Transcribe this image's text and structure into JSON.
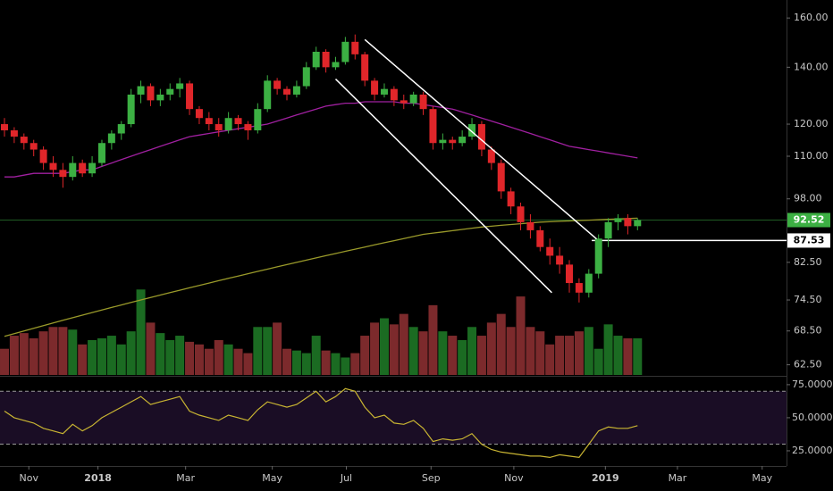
{
  "chart_data": {
    "type": "candlestick",
    "xlim": [
      -0.46,
      80.3
    ],
    "xticks": [
      {
        "value": 2.5,
        "label": "Nov"
      },
      {
        "value": 9.6,
        "label": "2018"
      },
      {
        "value": 18.6,
        "label": "Mar"
      },
      {
        "value": 27.5,
        "label": "May"
      },
      {
        "value": 35.1,
        "label": "Jul"
      },
      {
        "value": 43.8,
        "label": "Sep"
      },
      {
        "value": 52.3,
        "label": "Nov"
      },
      {
        "value": 61.7,
        "label": "2019"
      },
      {
        "value": 69.1,
        "label": "Mar"
      },
      {
        "value": 77.8,
        "label": "May"
      }
    ],
    "ylim": [
      60.8,
      168
    ],
    "log_scale": true,
    "yticks": [
      {
        "value": 160,
        "label": "160.00"
      },
      {
        "value": 140,
        "label": "140.00"
      },
      {
        "value": 120,
        "label": "120.00"
      },
      {
        "value": 110,
        "label": "110.00"
      },
      {
        "value": 98,
        "label": "98.00"
      },
      {
        "value": 82.5,
        "label": "82.50"
      },
      {
        "value": 74.5,
        "label": "74.50"
      },
      {
        "value": 68.5,
        "label": "68.50"
      },
      {
        "value": 62.5,
        "label": "62.50"
      }
    ],
    "up_color": "#3cb043",
    "down_color": "#e0262a",
    "candles": [
      [
        120,
        122,
        116,
        118
      ],
      [
        118,
        119,
        114,
        116
      ],
      [
        116,
        117,
        112,
        114
      ],
      [
        114,
        115,
        110,
        112
      ],
      [
        112,
        113,
        106,
        108
      ],
      [
        108,
        110,
        104,
        106
      ],
      [
        106,
        108,
        101,
        104
      ],
      [
        104,
        110,
        103,
        108
      ],
      [
        108,
        109,
        104,
        105
      ],
      [
        105,
        110,
        104,
        108
      ],
      [
        108,
        115,
        107,
        114
      ],
      [
        114,
        118,
        112,
        117
      ],
      [
        117,
        121,
        115,
        120
      ],
      [
        120,
        132,
        119,
        130
      ],
      [
        130,
        135,
        127,
        133
      ],
      [
        133,
        134,
        126,
        128
      ],
      [
        128,
        132,
        126,
        130
      ],
      [
        130,
        134,
        128,
        132
      ],
      [
        132,
        136,
        129,
        134
      ],
      [
        134,
        135,
        123,
        125
      ],
      [
        125,
        126,
        120,
        122
      ],
      [
        122,
        124,
        118,
        120
      ],
      [
        120,
        122,
        116,
        118
      ],
      [
        118,
        124,
        117,
        122
      ],
      [
        122,
        123,
        118,
        120
      ],
      [
        120,
        121,
        115,
        118
      ],
      [
        118,
        127,
        117,
        125
      ],
      [
        125,
        137,
        124,
        135
      ],
      [
        135,
        136,
        130,
        132
      ],
      [
        132,
        133,
        128,
        130
      ],
      [
        130,
        135,
        129,
        133
      ],
      [
        133,
        142,
        132,
        140
      ],
      [
        140,
        148,
        139,
        146
      ],
      [
        146,
        147,
        138,
        140
      ],
      [
        140,
        144,
        139,
        142
      ],
      [
        142,
        152,
        141,
        150
      ],
      [
        150,
        153,
        143,
        145
      ],
      [
        145,
        146,
        133,
        135
      ],
      [
        135,
        136,
        128,
        130
      ],
      [
        130,
        134,
        129,
        132
      ],
      [
        132,
        133,
        126,
        128
      ],
      [
        128,
        130,
        125,
        127
      ],
      [
        127,
        131,
        126,
        130
      ],
      [
        130,
        131,
        123,
        125
      ],
      [
        125,
        126,
        112,
        114
      ],
      [
        114,
        117,
        112,
        115
      ],
      [
        115,
        116,
        112,
        114
      ],
      [
        114,
        118,
        113,
        116
      ],
      [
        116,
        122,
        115,
        120
      ],
      [
        120,
        121,
        110,
        112
      ],
      [
        112,
        113,
        106,
        108
      ],
      [
        108,
        109,
        98,
        100
      ],
      [
        100,
        101,
        94,
        96
      ],
      [
        96,
        97,
        90,
        92
      ],
      [
        92,
        94,
        88,
        90
      ],
      [
        90,
        91,
        85,
        86
      ],
      [
        86,
        88,
        82,
        84
      ],
      [
        84,
        86,
        80,
        82
      ],
      [
        82,
        83,
        76,
        78
      ],
      [
        78,
        79,
        74,
        76
      ],
      [
        76,
        81,
        75,
        80
      ],
      [
        80,
        89,
        79,
        88
      ],
      [
        88,
        93,
        86,
        92
      ],
      [
        92,
        94,
        90,
        93
      ],
      [
        93,
        94,
        89,
        91
      ],
      [
        91,
        93,
        90,
        92.5
      ]
    ],
    "volume": [
      30,
      45,
      48,
      42,
      50,
      55,
      55,
      52,
      35,
      40,
      42,
      45,
      35,
      50,
      98,
      60,
      48,
      40,
      45,
      38,
      35,
      30,
      40,
      35,
      30,
      25,
      55,
      55,
      60,
      30,
      28,
      25,
      45,
      28,
      25,
      20,
      25,
      45,
      60,
      65,
      58,
      70,
      55,
      50,
      80,
      50,
      45,
      40,
      55,
      45,
      60,
      70,
      55,
      90,
      55,
      50,
      35,
      45,
      45,
      50,
      55,
      30,
      58,
      45,
      42,
      42
    ],
    "vlim": [
      0,
      430
    ],
    "volume_up_color": "#1b6b22",
    "volume_down_color": "#7c2a2c",
    "series": [
      {
        "color": "#a020a0",
        "values": [
          104,
          104,
          104.5,
          105,
          105,
          105,
          105,
          105.5,
          106,
          106,
          107,
          108,
          109,
          110,
          111,
          112,
          113,
          114,
          115,
          116,
          116.5,
          117,
          117.5,
          118,
          118.5,
          119,
          119.5,
          120,
          121,
          122,
          123,
          124,
          125,
          126,
          126.5,
          127,
          127,
          127.5,
          127.5,
          127.5,
          127.5,
          127,
          127,
          126.5,
          126,
          125.5,
          125,
          124,
          123,
          122,
          121,
          120,
          119,
          118,
          117,
          116,
          115,
          114,
          113,
          112.5,
          112,
          111.5,
          111,
          110.5,
          110,
          109.5
        ]
      },
      {
        "color": "#9a9a2a",
        "values": [
          67.5,
          68,
          68.5,
          69,
          69.5,
          70,
          70.5,
          71,
          71.5,
          72,
          72.5,
          73,
          73.5,
          74,
          74.5,
          75,
          75.5,
          76,
          76.5,
          77,
          77.5,
          78,
          78.5,
          79,
          79.5,
          80,
          80.5,
          81,
          81.5,
          82,
          82.5,
          83,
          83.5,
          84,
          84.5,
          85,
          85.5,
          86,
          86.5,
          87,
          87.5,
          88,
          88.5,
          89,
          89.3,
          89.6,
          89.9,
          90.2,
          90.5,
          90.8,
          91,
          91.2,
          91.4,
          91.6,
          91.8,
          92,
          92.1,
          92.2,
          92.3,
          92.4,
          92.5,
          92.6,
          92.7,
          92.8,
          92.9,
          93
        ]
      }
    ],
    "trendlines": [
      {
        "color": "#ffffff",
        "x": [
          37,
          60.8
        ],
        "y": [
          150.9,
          87.9
        ]
      },
      {
        "color": "#ffffff",
        "x": [
          34,
          56.2
        ],
        "y": [
          135.6,
          76
        ]
      }
    ],
    "price_lines": [
      {
        "value": 92.52,
        "color": "#3cb043",
        "x_start": -0.46
      },
      {
        "value": 87.53,
        "color": "#ffffff",
        "x_start": 60.3
      }
    ],
    "rsi": {
      "values": [
        55,
        50,
        48,
        46,
        42,
        40,
        38,
        45,
        40,
        44,
        50,
        54,
        58,
        62,
        66,
        60,
        62,
        64,
        66,
        55,
        52,
        50,
        48,
        52,
        50,
        48,
        56,
        62,
        60,
        58,
        60,
        65,
        70,
        62,
        66,
        72,
        70,
        58,
        50,
        52,
        46,
        45,
        48,
        42,
        32,
        34,
        33,
        34,
        38,
        30,
        26,
        24,
        23,
        22,
        21,
        21,
        20,
        22,
        21,
        20,
        30,
        40,
        43,
        42,
        42,
        44
      ],
      "color": "#c8b432",
      "ylim": [
        13.5,
        81
      ],
      "yticks": [
        {
          "value": 75,
          "label": "75.0000"
        },
        {
          "value": 50,
          "label": "50.0000"
        },
        {
          "value": 25,
          "label": "25.0000"
        }
      ],
      "bands": [
        30,
        70
      ]
    }
  }
}
